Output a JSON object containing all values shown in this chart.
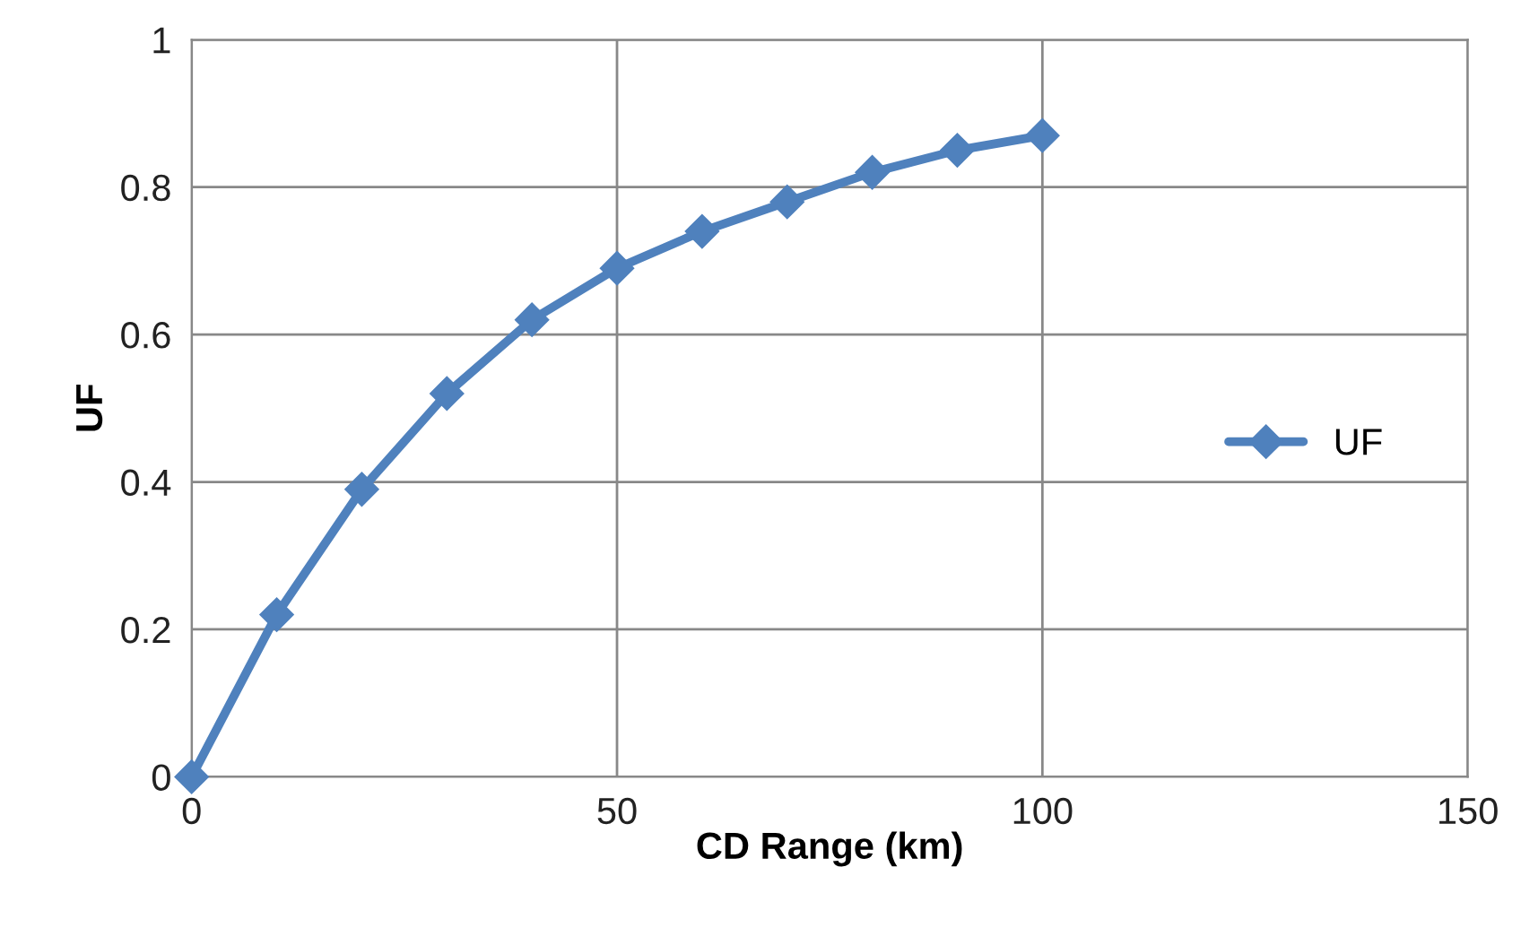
{
  "chart_data": {
    "type": "line",
    "xlabel": "CD Range (km)",
    "ylabel": "UF",
    "x": [
      0,
      10,
      20,
      30,
      40,
      50,
      60,
      70,
      80,
      90,
      100
    ],
    "series": [
      {
        "name": "UF",
        "color": "#4f81bd",
        "values": [
          0,
          0.22,
          0.39,
          0.52,
          0.62,
          0.69,
          0.74,
          0.78,
          0.82,
          0.85,
          0.87
        ]
      }
    ],
    "xlim": [
      0,
      150
    ],
    "xticks": [
      0,
      50,
      100,
      150
    ],
    "ylim": [
      0,
      1
    ],
    "yticks": [
      0,
      0.2,
      0.4,
      0.6,
      0.8,
      1
    ],
    "grid": true,
    "legend": "right",
    "marker": "diamond",
    "line_style": "solid"
  }
}
